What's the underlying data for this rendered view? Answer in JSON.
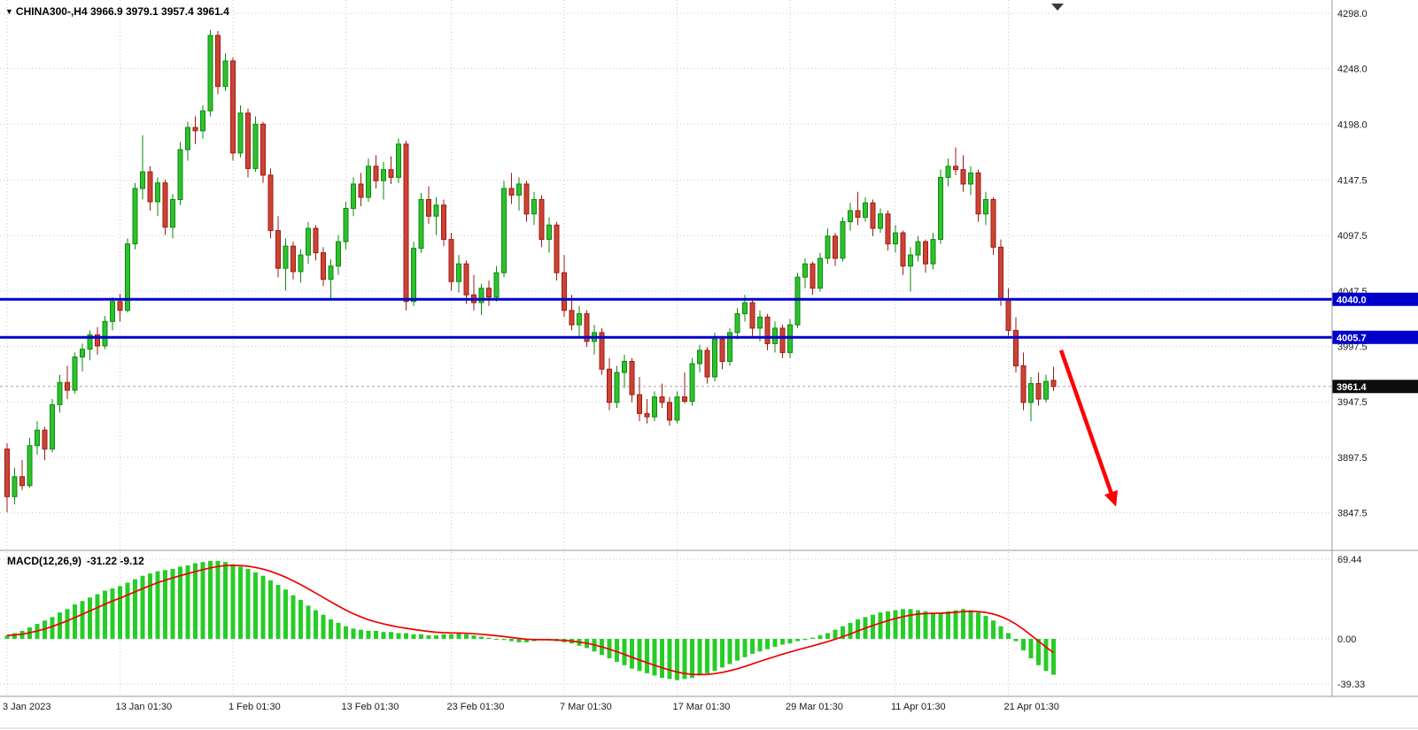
{
  "header": {
    "dropdown_icon": "▼",
    "symbol_period": "CHINA300-,H4",
    "ohlc": "3966.9 3979.1 3957.4 3961.4"
  },
  "chart_data": {
    "type": "candlestick",
    "symbol": "CHINA300-",
    "timeframe": "H4",
    "title": "CHINA300-,H4",
    "ohlc_display": {
      "open": 3966.9,
      "high": 3979.1,
      "low": 3957.4,
      "close": 3961.4
    },
    "price_axis": [
      "4298.0",
      "4248.0",
      "4198.0",
      "4147.5",
      "4097.5",
      "4047.5",
      "3997.5",
      "3947.5",
      "3897.5",
      "3847.5"
    ],
    "x_labels": [
      {
        "label": "3 Jan 2023",
        "index": 0
      },
      {
        "label": "13 Jan 01:30",
        "index": 15
      },
      {
        "label": "1 Feb 01:30",
        "index": 30
      },
      {
        "label": "13 Feb 01:30",
        "index": 45
      },
      {
        "label": "23 Feb 01:30",
        "index": 59
      },
      {
        "label": "7 Mar 01:30",
        "index": 74
      },
      {
        "label": "17 Mar 01:30",
        "index": 89
      },
      {
        "label": "29 Mar 01:30",
        "index": 104
      },
      {
        "label": "11 Apr 01:30",
        "index": 118
      },
      {
        "label": "21 Apr 01:30",
        "index": 133
      }
    ],
    "hlines": [
      {
        "price": 4040.0,
        "label": "4040.0"
      },
      {
        "price": 4005.7,
        "label": "4005.7"
      }
    ],
    "current_price": {
      "price": 3961.4,
      "label": "3961.4"
    },
    "arrow": {
      "from_index": 140,
      "from_price": 3994,
      "to_index": 147.3,
      "to_price": 3853
    },
    "candles": [
      [
        3905,
        3910,
        3848,
        3862
      ],
      [
        3862,
        3888,
        3855,
        3880
      ],
      [
        3880,
        3895,
        3868,
        3872
      ],
      [
        3872,
        3915,
        3870,
        3908
      ],
      [
        3908,
        3930,
        3900,
        3922
      ],
      [
        3922,
        3925,
        3895,
        3905
      ],
      [
        3905,
        3950,
        3902,
        3945
      ],
      [
        3945,
        3972,
        3938,
        3965
      ],
      [
        3965,
        3980,
        3950,
        3958
      ],
      [
        3958,
        3992,
        3955,
        3988
      ],
      [
        3988,
        4000,
        3975,
        3995
      ],
      [
        3995,
        4012,
        3985,
        4008
      ],
      [
        4008,
        4015,
        3990,
        3998
      ],
      [
        3998,
        4025,
        3995,
        4020
      ],
      [
        4020,
        4042,
        4012,
        4038
      ],
      [
        4038,
        4045,
        4020,
        4030
      ],
      [
        4030,
        4095,
        4028,
        4090
      ],
      [
        4090,
        4145,
        4085,
        4140
      ],
      [
        4140,
        4188,
        4130,
        4155
      ],
      [
        4155,
        4160,
        4120,
        4128
      ],
      [
        4128,
        4150,
        4115,
        4145
      ],
      [
        4145,
        4148,
        4098,
        4105
      ],
      [
        4105,
        4135,
        4095,
        4130
      ],
      [
        4130,
        4182,
        4125,
        4175
      ],
      [
        4175,
        4200,
        4165,
        4195
      ],
      [
        4195,
        4205,
        4180,
        4192
      ],
      [
        4192,
        4215,
        4185,
        4210
      ],
      [
        4210,
        4283,
        4205,
        4278
      ],
      [
        4278,
        4282,
        4225,
        4232
      ],
      [
        4232,
        4262,
        4228,
        4255
      ],
      [
        4255,
        4258,
        4165,
        4172
      ],
      [
        4172,
        4215,
        4168,
        4208
      ],
      [
        4208,
        4212,
        4150,
        4158
      ],
      [
        4158,
        4205,
        4155,
        4198
      ],
      [
        4198,
        4200,
        4145,
        4152
      ],
      [
        4152,
        4158,
        4095,
        4102
      ],
      [
        4102,
        4115,
        4060,
        4068
      ],
      [
        4068,
        4095,
        4048,
        4088
      ],
      [
        4088,
        4092,
        4058,
        4065
      ],
      [
        4065,
        4085,
        4055,
        4080
      ],
      [
        4080,
        4110,
        4072,
        4104
      ],
      [
        4104,
        4107,
        4075,
        4082
      ],
      [
        4082,
        4087,
        4052,
        4058
      ],
      [
        4058,
        4076,
        4040,
        4070
      ],
      [
        4070,
        4098,
        4062,
        4092
      ],
      [
        4092,
        4128,
        4085,
        4122
      ],
      [
        4122,
        4150,
        4115,
        4144
      ],
      [
        4144,
        4154,
        4124,
        4132
      ],
      [
        4132,
        4167,
        4128,
        4160
      ],
      [
        4160,
        4170,
        4140,
        4147
      ],
      [
        4147,
        4164,
        4130,
        4157
      ],
      [
        4157,
        4169,
        4144,
        4150
      ],
      [
        4150,
        4185,
        4145,
        4180
      ],
      [
        4180,
        4183,
        4030,
        4038
      ],
      [
        4038,
        4092,
        4034,
        4086
      ],
      [
        4086,
        4136,
        4082,
        4130
      ],
      [
        4130,
        4142,
        4108,
        4115
      ],
      [
        4115,
        4132,
        4098,
        4125
      ],
      [
        4125,
        4130,
        4088,
        4094
      ],
      [
        4094,
        4100,
        4048,
        4056
      ],
      [
        4056,
        4080,
        4046,
        4072
      ],
      [
        4072,
        4075,
        4036,
        4044
      ],
      [
        4044,
        4062,
        4030,
        4037
      ],
      [
        4037,
        4054,
        4026,
        4050
      ],
      [
        4050,
        4057,
        4034,
        4042
      ],
      [
        4042,
        4070,
        4038,
        4064
      ],
      [
        4064,
        4147,
        4060,
        4140
      ],
      [
        4140,
        4154,
        4126,
        4134
      ],
      [
        4134,
        4150,
        4120,
        4144
      ],
      [
        4144,
        4147,
        4110,
        4117
      ],
      [
        4117,
        4137,
        4107,
        4130
      ],
      [
        4130,
        4134,
        4087,
        4094
      ],
      [
        4094,
        4114,
        4082,
        4107
      ],
      [
        4107,
        4110,
        4057,
        4064
      ],
      [
        4064,
        4080,
        4024,
        4030
      ],
      [
        4030,
        4044,
        4012,
        4017
      ],
      [
        4017,
        4034,
        4007,
        4027
      ],
      [
        4027,
        4030,
        3997,
        4002
      ],
      [
        4002,
        4017,
        3990,
        4010
      ],
      [
        4010,
        4014,
        3972,
        3977
      ],
      [
        3977,
        3987,
        3940,
        3947
      ],
      [
        3947,
        3980,
        3942,
        3974
      ],
      [
        3974,
        3990,
        3960,
        3984
      ],
      [
        3984,
        3987,
        3947,
        3954
      ],
      [
        3954,
        3970,
        3930,
        3937
      ],
      [
        3937,
        3950,
        3928,
        3934
      ],
      [
        3934,
        3957,
        3930,
        3952
      ],
      [
        3952,
        3964,
        3942,
        3947
      ],
      [
        3947,
        3952,
        3926,
        3931
      ],
      [
        3931,
        3957,
        3928,
        3952
      ],
      [
        3952,
        3974,
        3946,
        3948
      ],
      [
        3948,
        3987,
        3944,
        3982
      ],
      [
        3982,
        3999,
        3974,
        3994
      ],
      [
        3994,
        3997,
        3964,
        3970
      ],
      [
        3970,
        4010,
        3966,
        4004
      ],
      [
        4004,
        4007,
        3977,
        3984
      ],
      [
        3984,
        4014,
        3980,
        4010
      ],
      [
        4010,
        4032,
        4004,
        4027
      ],
      [
        4027,
        4044,
        4020,
        4037
      ],
      [
        4037,
        4040,
        4007,
        4014
      ],
      [
        4014,
        4030,
        4002,
        4024
      ],
      [
        4024,
        4027,
        3994,
        4000
      ],
      [
        4000,
        4020,
        3992,
        4014
      ],
      [
        4014,
        4017,
        3987,
        3992
      ],
      [
        3992,
        4022,
        3987,
        4017
      ],
      [
        4017,
        4064,
        4014,
        4060
      ],
      [
        4060,
        4077,
        4050,
        4072
      ],
      [
        4072,
        4074,
        4044,
        4050
      ],
      [
        4050,
        4082,
        4047,
        4077
      ],
      [
        4077,
        4104,
        4072,
        4097
      ],
      [
        4097,
        4100,
        4070,
        4077
      ],
      [
        4077,
        4114,
        4074,
        4110
      ],
      [
        4110,
        4127,
        4102,
        4120
      ],
      [
        4120,
        4137,
        4107,
        4114
      ],
      [
        4114,
        4132,
        4110,
        4127
      ],
      [
        4127,
        4130,
        4097,
        4104
      ],
      [
        4104,
        4122,
        4100,
        4117
      ],
      [
        4117,
        4120,
        4084,
        4090
      ],
      [
        4090,
        4107,
        4082,
        4100
      ],
      [
        4100,
        4102,
        4062,
        4070
      ],
      [
        4070,
        4087,
        4047,
        4080
      ],
      [
        4080,
        4097,
        4074,
        4092
      ],
      [
        4092,
        4094,
        4064,
        4072
      ],
      [
        4072,
        4100,
        4067,
        4094
      ],
      [
        4094,
        4157,
        4090,
        4150
      ],
      [
        4150,
        4167,
        4142,
        4160
      ],
      [
        4160,
        4177,
        4152,
        4157
      ],
      [
        4157,
        4170,
        4137,
        4144
      ],
      [
        4144,
        4160,
        4134,
        4154
      ],
      [
        4154,
        4157,
        4110,
        4117
      ],
      [
        4117,
        4137,
        4107,
        4130
      ],
      [
        4130,
        4132,
        4080,
        4087
      ],
      [
        4087,
        4094,
        4034,
        4040
      ],
      [
        4040,
        4050,
        4007,
        4012
      ],
      [
        4012,
        4024,
        3974,
        3980
      ],
      [
        3980,
        3992,
        3940,
        3947
      ],
      [
        3947,
        3970,
        3930,
        3964
      ],
      [
        3964,
        3974,
        3944,
        3950
      ],
      [
        3950,
        3972,
        3947,
        3966
      ],
      [
        3966.9,
        3979.1,
        3957.4,
        3961.4
      ]
    ],
    "macd": {
      "label": "MACD(12,26,9)",
      "values_text": "-31.22 -9.12",
      "macd_value": -31.22,
      "signal_value": -9.12,
      "fast": 12,
      "slow": 26,
      "signal_period": 9,
      "axis": [
        "69.44",
        "0.00",
        "-39.33"
      ],
      "values": [
        3,
        5,
        7,
        10,
        13,
        16,
        19,
        23,
        26,
        30,
        33,
        36,
        39,
        42,
        44,
        46,
        49,
        52,
        55,
        57,
        59,
        60,
        61,
        63,
        64,
        66,
        67,
        68,
        68,
        67,
        65,
        63,
        61,
        58,
        55,
        51,
        47,
        43,
        38,
        34,
        29,
        25,
        21,
        17,
        14,
        11,
        9,
        8,
        7,
        7,
        6,
        6,
        5,
        5,
        4,
        4,
        3,
        3,
        4,
        4,
        5,
        4,
        3,
        2,
        1,
        0,
        -1,
        -2,
        -3,
        -3,
        -2,
        -1,
        -1,
        -2,
        -3,
        -4,
        -6,
        -8,
        -11,
        -14,
        -17,
        -20,
        -23,
        -26,
        -28,
        -30,
        -32,
        -34,
        -35,
        -36,
        -35,
        -34,
        -32,
        -30,
        -28,
        -25,
        -22,
        -19,
        -16,
        -13,
        -11,
        -9,
        -7,
        -5,
        -4,
        -2,
        -1,
        1,
        3,
        5,
        8,
        11,
        14,
        17,
        19,
        21,
        23,
        24,
        25,
        26,
        26,
        25,
        24,
        23,
        23,
        24,
        25,
        26,
        25,
        23,
        20,
        16,
        11,
        5,
        -2,
        -10,
        -17,
        -23,
        -28,
        -31.22
      ]
    },
    "colors": {
      "up_fill": "#2fc12f",
      "up_stroke": "#0e8a0e",
      "down_fill": "#cc4437",
      "down_stroke": "#9e1b10",
      "grid": "#c9c9c9",
      "level_line": "#0000cc",
      "current_line": "#a8a8a8",
      "current_tag_bg": "#0d0d0d",
      "macd_bar": "#27cd27",
      "macd_signal": "#f00000",
      "arrow": "#fe0000",
      "axis_text": "#1a1a1a",
      "separator": "#9a9a9a",
      "bg": "#ffffff"
    }
  }
}
